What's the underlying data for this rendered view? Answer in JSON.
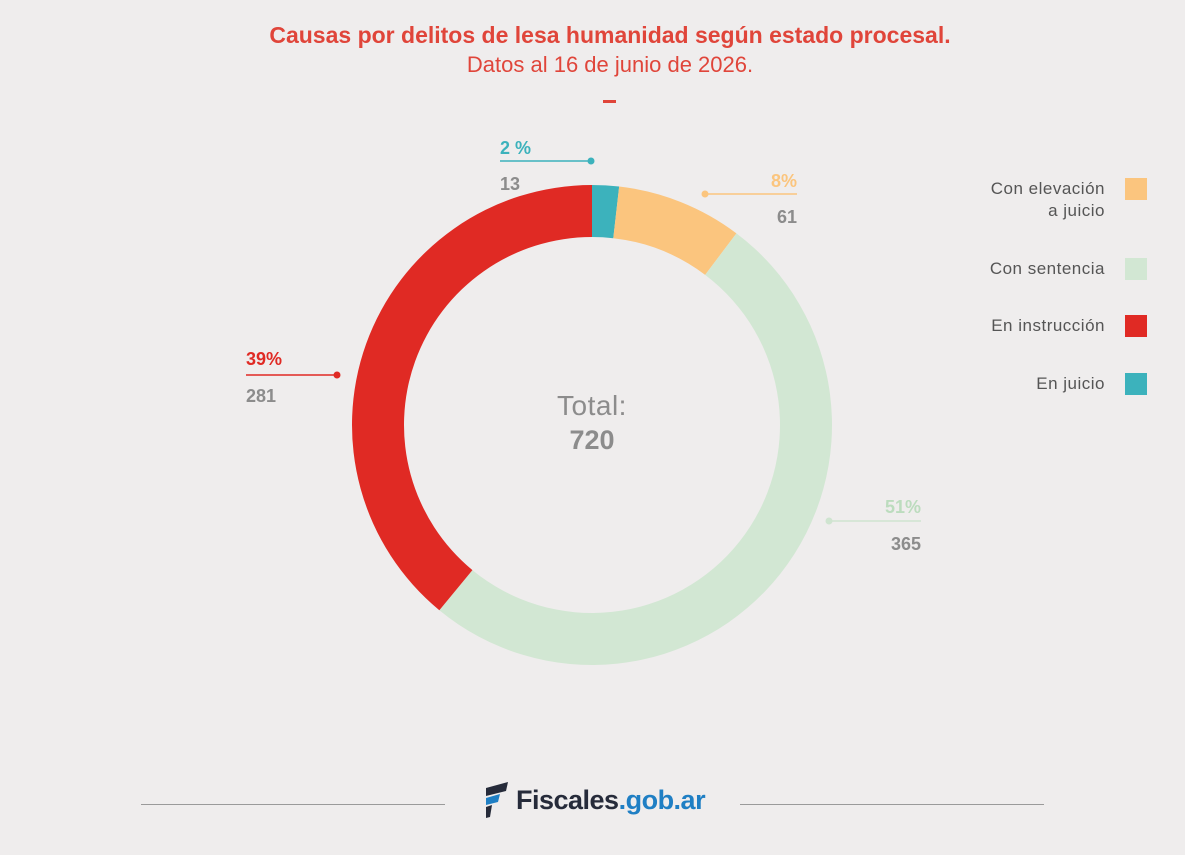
{
  "chart_data": {
    "type": "pie",
    "title": "Causas por delitos de lesa humanidad según estado procesal.",
    "subtitle": "Datos al 16 de junio de 2026.",
    "center_label": "Total:",
    "center_value": "720",
    "slices": [
      {
        "name": "En juicio",
        "value": 13,
        "percent_label": "2 %",
        "value_label": "13",
        "color": "#3cb2bc"
      },
      {
        "name": "Con elevación a juicio",
        "value": 61,
        "percent_label": "8%",
        "value_label": "61",
        "color": "#fbc57e"
      },
      {
        "name": "Con sentencia",
        "value": 365,
        "percent_label": "51%",
        "value_label": "365",
        "color": "#d2e7d3"
      },
      {
        "name": "En instrucción",
        "value": 281,
        "percent_label": "39%",
        "value_label": "281",
        "color": "#e02a24"
      }
    ],
    "legend": [
      {
        "label": "Con elevación\na juicio",
        "color": "#fbc57e"
      },
      {
        "label": "Con sentencia",
        "color": "#d2e7d3"
      },
      {
        "label": "En instrucción",
        "color": "#e02a24"
      },
      {
        "label": "En juicio",
        "color": "#3cb2bc"
      }
    ],
    "legend_position": "right"
  },
  "footer": {
    "brand": "Fiscales",
    "domain": ".gob.ar",
    "logo_icon": "fiscales-flag-icon"
  },
  "colors": {
    "title": "#e0453a",
    "background": "#efeded",
    "value_text": "#8c8c8c",
    "center_text": "#8c8c8c"
  }
}
